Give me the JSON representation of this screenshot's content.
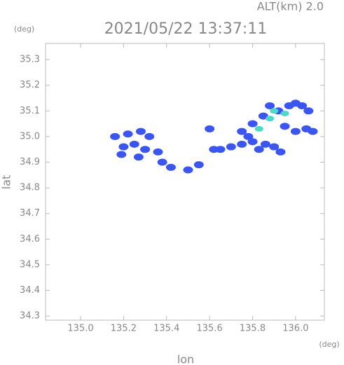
{
  "chart_data": {
    "type": "scatter",
    "title": "2021/05/22 13:37:11",
    "annotation": "ALT(km) 2.0",
    "y_unit": "(deg)",
    "x_unit": "(deg)",
    "x_label": "lon",
    "y_label": "lat",
    "xlim": [
      134.837,
      136.134
    ],
    "ylim": [
      34.284,
      35.363
    ],
    "xticks": [
      {
        "value": 135.0,
        "label": "135.0"
      },
      135.2,
      135.4,
      135.6,
      135.8,
      {
        "value": 136.0,
        "label": "136.0"
      }
    ],
    "yticks": [
      34.3,
      34.4,
      34.5,
      34.6,
      34.7,
      34.8,
      34.9,
      {
        "value": 35.0,
        "label": "35.0"
      },
      35.1,
      35.2,
      35.3
    ],
    "series": [
      {
        "color": "#3a55f0",
        "x": [
          135.16,
          135.2,
          135.22,
          135.25,
          135.28,
          135.3,
          135.32,
          135.19,
          135.27,
          135.36,
          135.38,
          135.42,
          135.5,
          135.55,
          135.6,
          135.62,
          135.65,
          135.7,
          135.75,
          135.78,
          135.8,
          135.83,
          135.86,
          135.9,
          135.93,
          135.75,
          135.8,
          135.85,
          135.88,
          135.92,
          135.97,
          136.0,
          136.03,
          136.06,
          136.05,
          136.0,
          135.95,
          136.08
        ],
        "values": [
          35.0,
          34.96,
          35.01,
          34.97,
          35.02,
          34.95,
          35.0,
          34.93,
          34.92,
          34.94,
          34.9,
          34.88,
          34.87,
          34.89,
          35.03,
          34.95,
          34.95,
          34.96,
          34.97,
          35.0,
          34.98,
          34.95,
          34.97,
          34.96,
          34.94,
          35.02,
          35.05,
          35.08,
          35.12,
          35.1,
          35.12,
          35.13,
          35.12,
          35.1,
          35.03,
          35.02,
          35.04,
          35.02
        ]
      },
      {
        "color": "#4fd8c8",
        "x": [
          135.83,
          135.88,
          135.9,
          135.95
        ],
        "values": [
          35.03,
          35.07,
          35.1,
          35.09
        ]
      }
    ]
  }
}
